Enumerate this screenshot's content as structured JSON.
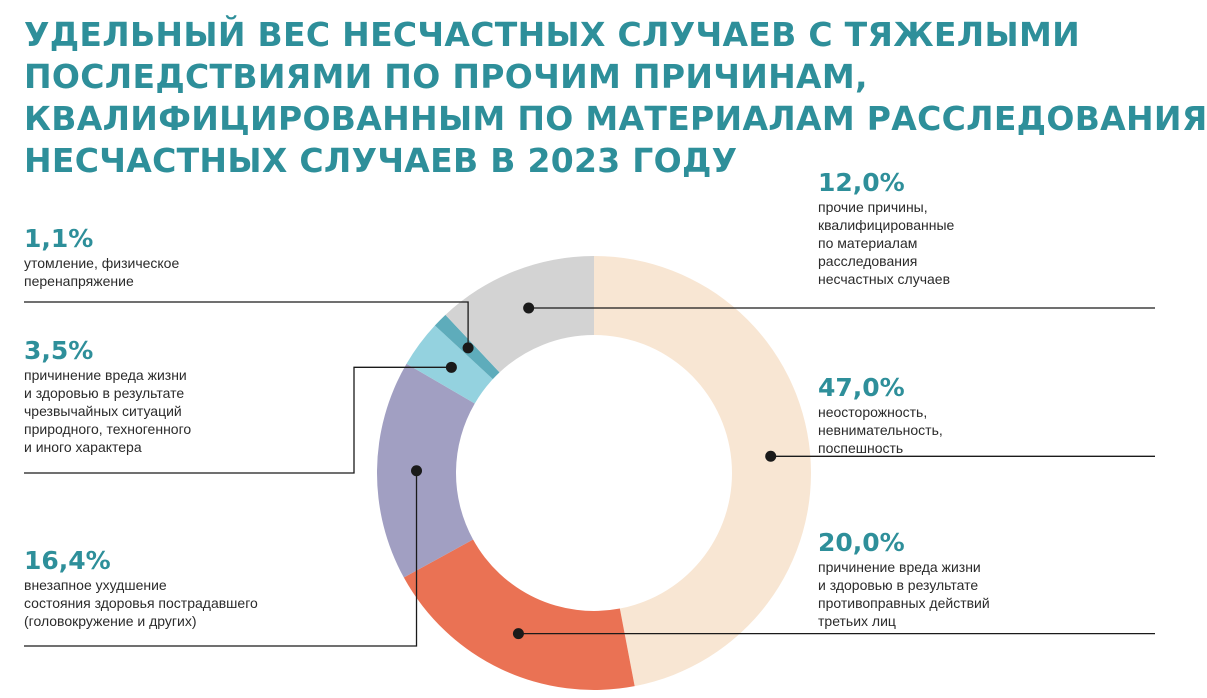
{
  "title_lines": [
    "УДЕЛЬНЫЙ ВЕС НЕСЧАСТНЫХ СЛУЧАЕВ С ТЯЖЕЛЫМИ",
    "ПОСЛЕДСТВИЯМИ ПО ПРОЧИМ ПРИЧИНАМ,",
    "КВАЛИФИЦИРОВАННЫМ ПО МАТЕРИАЛАМ РАССЛЕДОВАНИЯ",
    "НЕСЧАСТНЫХ СЛУЧАЕВ В 2023 ГОДУ"
  ],
  "chart_data": {
    "type": "pie",
    "donut": true,
    "start": "top, clockwise",
    "slices": [
      {
        "label": "неосторожность,\nневнимательность,\nпоспешность",
        "value": 47.0,
        "value_label": "47,0%",
        "color": "#f8e6d3"
      },
      {
        "label": "причинение вреда жизни\nи здоровью в результате\nпротивоправных действий\nтретьих лиц",
        "value": 20.0,
        "value_label": "20,0%",
        "color": "#ea7254"
      },
      {
        "label": "внезапное ухудшение\nсостояния здоровья пострадавшего\n(головокружение и других)",
        "value": 16.4,
        "value_label": "16,4%",
        "color": "#a19fc2"
      },
      {
        "label": "причинение вреда жизни\nи здоровью в результате\nчрезвычайных ситуаций\nприродного, техногенного\nи иного характера",
        "value": 3.5,
        "value_label": "3,5%",
        "color": "#94d2df"
      },
      {
        "label": "утомление, физическое\nперенапряжение",
        "value": 1.1,
        "value_label": "1,1%",
        "color": "#5eacbb"
      },
      {
        "label": "прочие причины,\nквалифицированные\nпо материалам\nрасследования\nнесчастных случаев",
        "value": 12.0,
        "value_label": "12,0%",
        "color": "#d3d3d3"
      }
    ],
    "line_color": "#1a1a1a"
  }
}
